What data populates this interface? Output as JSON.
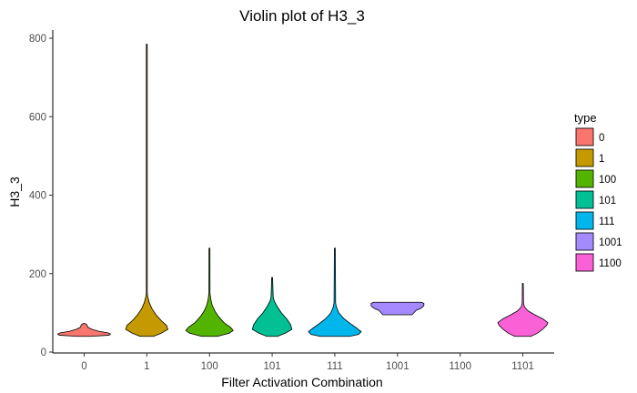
{
  "chart_data": {
    "type": "violin",
    "title": "Violin plot of H3_3",
    "xlabel": "Filter Activation Combination",
    "ylabel": "H3_3",
    "ylim": [
      0,
      825
    ],
    "yticks": [
      0,
      200,
      400,
      600,
      800
    ],
    "categories": [
      "0",
      "1",
      "100",
      "101",
      "111",
      "1001",
      "1100",
      "1101"
    ],
    "grid": false,
    "legend": {
      "title": "type",
      "placement": "right",
      "entries": [
        {
          "label": "0",
          "color": "#F8766D"
        },
        {
          "label": "1",
          "color": "#C49A00"
        },
        {
          "label": "100",
          "color": "#53B400"
        },
        {
          "label": "101",
          "color": "#00C094"
        },
        {
          "label": "111",
          "color": "#00B6EB"
        },
        {
          "label": "1001",
          "color": "#A58AFF"
        },
        {
          "label": "1100",
          "color": "#FB61D7"
        }
      ]
    },
    "violins": [
      {
        "category": "0",
        "type": "0",
        "min": 40,
        "max": 73,
        "profile": [
          [
            40,
            0.25
          ],
          [
            43,
            0.95
          ],
          [
            46,
            1.0
          ],
          [
            49,
            0.9
          ],
          [
            53,
            0.55
          ],
          [
            58,
            0.3
          ],
          [
            63,
            0.15
          ],
          [
            67,
            0.12
          ],
          [
            70,
            0.1
          ],
          [
            73,
            0.02
          ]
        ]
      },
      {
        "category": "1",
        "type": "1",
        "min": 40,
        "max": 785,
        "profile": [
          [
            40,
            0.25
          ],
          [
            48,
            0.55
          ],
          [
            58,
            0.8
          ],
          [
            68,
            0.75
          ],
          [
            80,
            0.55
          ],
          [
            95,
            0.35
          ],
          [
            110,
            0.2
          ],
          [
            125,
            0.1
          ],
          [
            140,
            0.04
          ],
          [
            150,
            0.015
          ],
          [
            785,
            0.01
          ]
        ]
      },
      {
        "category": "100",
        "type": "100",
        "min": 40,
        "max": 265,
        "profile": [
          [
            40,
            0.3
          ],
          [
            48,
            0.75
          ],
          [
            55,
            0.9
          ],
          [
            63,
            0.8
          ],
          [
            75,
            0.55
          ],
          [
            90,
            0.35
          ],
          [
            105,
            0.2
          ],
          [
            120,
            0.1
          ],
          [
            135,
            0.05
          ],
          [
            150,
            0.02
          ],
          [
            265,
            0.015
          ]
        ]
      },
      {
        "category": "101",
        "type": "101",
        "min": 40,
        "max": 190,
        "profile": [
          [
            40,
            0.2
          ],
          [
            48,
            0.5
          ],
          [
            58,
            0.75
          ],
          [
            70,
            0.7
          ],
          [
            85,
            0.55
          ],
          [
            100,
            0.35
          ],
          [
            115,
            0.2
          ],
          [
            130,
            0.08
          ],
          [
            140,
            0.04
          ],
          [
            190,
            0.015
          ]
        ]
      },
      {
        "category": "111",
        "type": "111",
        "min": 40,
        "max": 265,
        "profile": [
          [
            40,
            0.55
          ],
          [
            45,
            0.9
          ],
          [
            52,
            1.0
          ],
          [
            60,
            0.85
          ],
          [
            72,
            0.6
          ],
          [
            85,
            0.35
          ],
          [
            100,
            0.15
          ],
          [
            115,
            0.06
          ],
          [
            125,
            0.03
          ],
          [
            265,
            0.015
          ]
        ]
      },
      {
        "category": "1001",
        "type": "1001",
        "min": 95,
        "max": 127,
        "profile": [
          [
            95,
            0.55
          ],
          [
            100,
            0.62
          ],
          [
            106,
            0.7
          ],
          [
            112,
            0.9
          ],
          [
            118,
            1.0
          ],
          [
            124,
            1.0
          ],
          [
            127,
            0.9
          ]
        ]
      },
      {
        "category": "1101",
        "type": "1100",
        "min": 40,
        "max": 175,
        "profile": [
          [
            40,
            0.3
          ],
          [
            48,
            0.55
          ],
          [
            58,
            0.75
          ],
          [
            68,
            0.9
          ],
          [
            75,
            0.95
          ],
          [
            85,
            0.75
          ],
          [
            95,
            0.45
          ],
          [
            105,
            0.2
          ],
          [
            115,
            0.06
          ],
          [
            125,
            0.025
          ],
          [
            175,
            0.015
          ]
        ]
      }
    ]
  }
}
